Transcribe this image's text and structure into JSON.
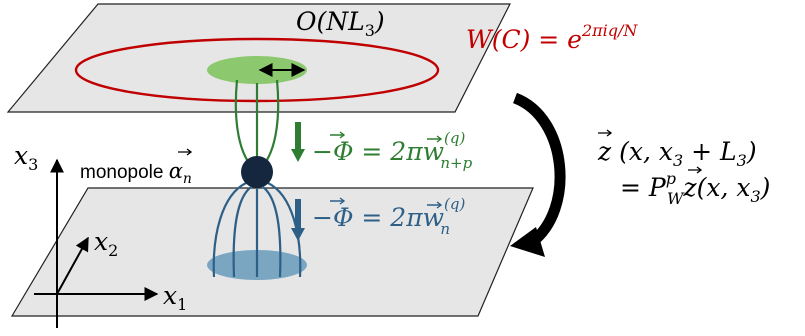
{
  "labels": {
    "operator": "O(NL",
    "operator_sub": "3",
    "operator_close": ")",
    "wilson_lhs": "W(C) = e",
    "wilson_exp": "2πiq/N",
    "monopole_word": "monopole ",
    "monopole_sym": "α",
    "monopole_sub": "n",
    "flux_top_lhs": "−Φ = 2πw",
    "flux_top_sup": "(q)",
    "flux_top_sub": "n+p",
    "flux_bottom_lhs": "−Φ = 2πw",
    "flux_bottom_sup": "(q)",
    "flux_bottom_sub": "n",
    "bc_line1_a": "z",
    "bc_line1_b": "(x, x",
    "bc_line1_sub": "3",
    "bc_line1_c": " + L",
    "bc_line1_sub2": "3",
    "bc_line1_d": ")",
    "bc_line2_a": "= P",
    "bc_line2_sup": "p",
    "bc_line2_sub": "W",
    "bc_line2_b": "z(x, x",
    "bc_line2_sub3": "3",
    "bc_line2_c": ")",
    "axis_x1": "x",
    "axis_x1_sub": "1",
    "axis_x2": "x",
    "axis_x2_sub": "2",
    "axis_x3": "x",
    "axis_x3_sub": "3"
  },
  "colors": {
    "wilson_red": "#c00000",
    "flux_green": "#2e7d32",
    "flux_blue": "#2e5f87",
    "plane_fill": "#e6e6e6",
    "green_disk": "#8cc86e",
    "blue_disk": "#7aa6c2",
    "monopole": "#14273f"
  }
}
